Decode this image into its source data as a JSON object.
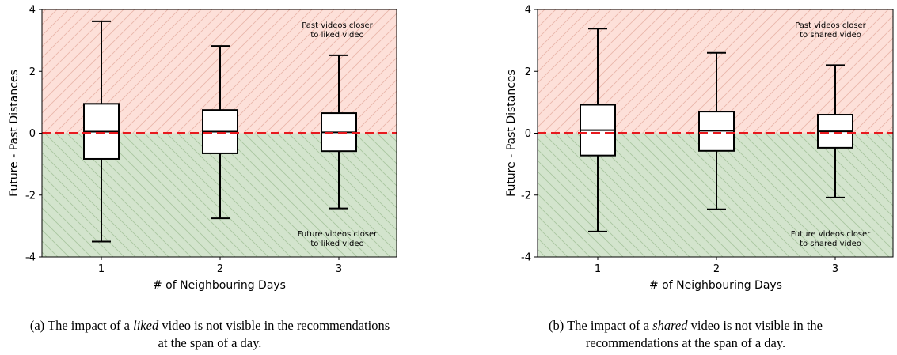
{
  "chart_data": [
    {
      "type": "box",
      "categories": [
        "1",
        "2",
        "3"
      ],
      "xlabel": "# of Neighbouring Days",
      "ylabel": "Future - Past Distances",
      "ylim": [
        -4,
        4
      ],
      "yticks": [
        "4",
        "2",
        "0",
        "-2",
        "-4"
      ],
      "reference_line": {
        "y": 0,
        "color": "#e8191e",
        "style": "dashed"
      },
      "boxes": [
        {
          "whisker_low": -3.5,
          "q1": -0.83,
          "median": 0.05,
          "q3": 0.95,
          "whisker_high": 3.62
        },
        {
          "whisker_low": -2.75,
          "q1": -0.65,
          "median": 0.05,
          "q3": 0.75,
          "whisker_high": 2.82
        },
        {
          "whisker_low": -2.43,
          "q1": -0.58,
          "median": 0.03,
          "q3": 0.65,
          "whisker_high": 2.52
        }
      ],
      "upper_region": {
        "color": "#fde0d9",
        "label_lines": [
          "Past videos closer",
          "to liked video"
        ]
      },
      "lower_region": {
        "color": "#d3e4cd",
        "label_lines": [
          "Future videos closer",
          "to liked video"
        ]
      },
      "caption": {
        "prefix": "(a) The impact of a ",
        "emph": "liked",
        "suffix": " video is not visible in the recommendations at the span of a day."
      }
    },
    {
      "type": "box",
      "categories": [
        "1",
        "2",
        "3"
      ],
      "xlabel": "# of Neighbouring Days",
      "ylabel": "Future - Past Distances",
      "ylim": [
        -4,
        4
      ],
      "yticks": [
        "4",
        "2",
        "0",
        "-2",
        "-4"
      ],
      "reference_line": {
        "y": 0,
        "color": "#e8191e",
        "style": "dashed"
      },
      "boxes": [
        {
          "whisker_low": -3.18,
          "q1": -0.72,
          "median": 0.1,
          "q3": 0.92,
          "whisker_high": 3.38
        },
        {
          "whisker_low": -2.46,
          "q1": -0.57,
          "median": 0.08,
          "q3": 0.7,
          "whisker_high": 2.6
        },
        {
          "whisker_low": -2.08,
          "q1": -0.47,
          "median": 0.06,
          "q3": 0.6,
          "whisker_high": 2.2
        }
      ],
      "upper_region": {
        "color": "#fde0d9",
        "label_lines": [
          "Past videos closer",
          "to shared video"
        ]
      },
      "lower_region": {
        "color": "#d3e4cd",
        "label_lines": [
          "Future videos closer",
          "to shared video"
        ]
      },
      "caption": {
        "prefix": "(b) The impact of a ",
        "emph": "shared",
        "suffix": " video is not visible in the recommendations at the span of a day."
      }
    }
  ]
}
